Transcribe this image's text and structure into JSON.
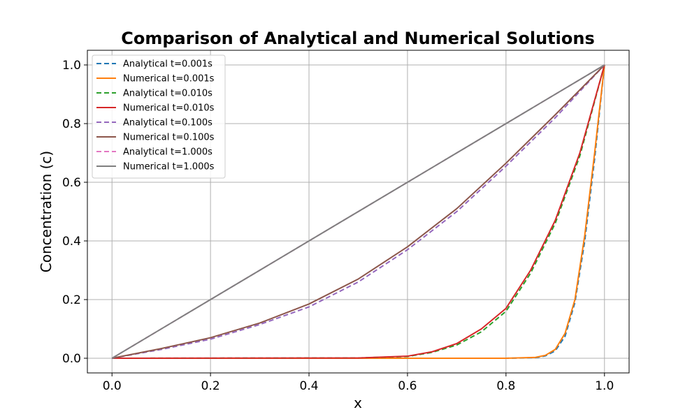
{
  "chart_data": {
    "type": "line",
    "title": "Comparison of Analytical and Numerical Solutions",
    "xlabel": "x",
    "ylabel": "Concentration (c)",
    "xlim": [
      -0.05,
      1.05
    ],
    "ylim": [
      -0.05,
      1.05
    ],
    "grid": true,
    "legend_position": "top-left",
    "x_ticks": [
      {
        "value": 0.0,
        "label": "0.0"
      },
      {
        "value": 0.2,
        "label": "0.2"
      },
      {
        "value": 0.4,
        "label": "0.4"
      },
      {
        "value": 0.6,
        "label": "0.6"
      },
      {
        "value": 0.8,
        "label": "0.8"
      },
      {
        "value": 1.0,
        "label": "1.0"
      }
    ],
    "y_ticks": [
      {
        "value": 0.0,
        "label": "0.0"
      },
      {
        "value": 0.2,
        "label": "0.2"
      },
      {
        "value": 0.4,
        "label": "0.4"
      },
      {
        "value": 0.6,
        "label": "0.6"
      },
      {
        "value": 0.8,
        "label": "0.8"
      },
      {
        "value": 1.0,
        "label": "1.0"
      }
    ],
    "series": [
      {
        "name": "Analytical t=0.001s",
        "color": "#1f77b4",
        "style": "dashed",
        "x": [
          0.0,
          0.8,
          0.86,
          0.88,
          0.9,
          0.92,
          0.94,
          0.96,
          0.98,
          1.0
        ],
        "y": [
          0.0,
          0.0,
          0.002,
          0.008,
          0.025,
          0.075,
          0.19,
          0.4,
          0.68,
          1.0
        ]
      },
      {
        "name": "Numerical t=0.001s",
        "color": "#ff7f0e",
        "style": "solid",
        "x": [
          0.0,
          0.8,
          0.86,
          0.88,
          0.9,
          0.92,
          0.94,
          0.96,
          0.98,
          1.0
        ],
        "y": [
          0.0,
          0.0,
          0.003,
          0.01,
          0.03,
          0.085,
          0.2,
          0.42,
          0.7,
          1.0
        ]
      },
      {
        "name": "Analytical t=0.010s",
        "color": "#2ca02c",
        "style": "dashed",
        "x": [
          0.0,
          0.5,
          0.6,
          0.65,
          0.7,
          0.75,
          0.8,
          0.85,
          0.9,
          0.95,
          1.0
        ],
        "y": [
          0.0,
          0.001,
          0.006,
          0.02,
          0.045,
          0.09,
          0.16,
          0.29,
          0.46,
          0.69,
          1.0
        ]
      },
      {
        "name": "Numerical t=0.010s",
        "color": "#d62728",
        "style": "solid",
        "x": [
          0.0,
          0.5,
          0.6,
          0.65,
          0.7,
          0.75,
          0.8,
          0.85,
          0.9,
          0.95,
          1.0
        ],
        "y": [
          0.0,
          0.001,
          0.007,
          0.022,
          0.05,
          0.1,
          0.17,
          0.3,
          0.47,
          0.7,
          1.0
        ]
      },
      {
        "name": "Analytical t=0.100s",
        "color": "#9467bd",
        "style": "dashed",
        "x": [
          0.0,
          0.1,
          0.2,
          0.3,
          0.4,
          0.5,
          0.6,
          0.7,
          0.8,
          0.9,
          1.0
        ],
        "y": [
          0.0,
          0.03,
          0.065,
          0.115,
          0.175,
          0.26,
          0.37,
          0.5,
          0.655,
          0.82,
          1.0
        ]
      },
      {
        "name": "Numerical t=0.100s",
        "color": "#8c564b",
        "style": "solid",
        "x": [
          0.0,
          0.1,
          0.2,
          0.3,
          0.4,
          0.5,
          0.6,
          0.7,
          0.8,
          0.9,
          1.0
        ],
        "y": [
          0.0,
          0.033,
          0.07,
          0.12,
          0.185,
          0.27,
          0.38,
          0.51,
          0.665,
          0.83,
          1.0
        ]
      },
      {
        "name": "Analytical t=1.000s",
        "color": "#e377c2",
        "style": "dashed",
        "x": [
          0.0,
          1.0
        ],
        "y": [
          0.0,
          1.0
        ]
      },
      {
        "name": "Numerical t=1.000s",
        "color": "#7f7f7f",
        "style": "solid",
        "x": [
          0.0,
          1.0
        ],
        "y": [
          0.0,
          1.0
        ]
      }
    ]
  }
}
